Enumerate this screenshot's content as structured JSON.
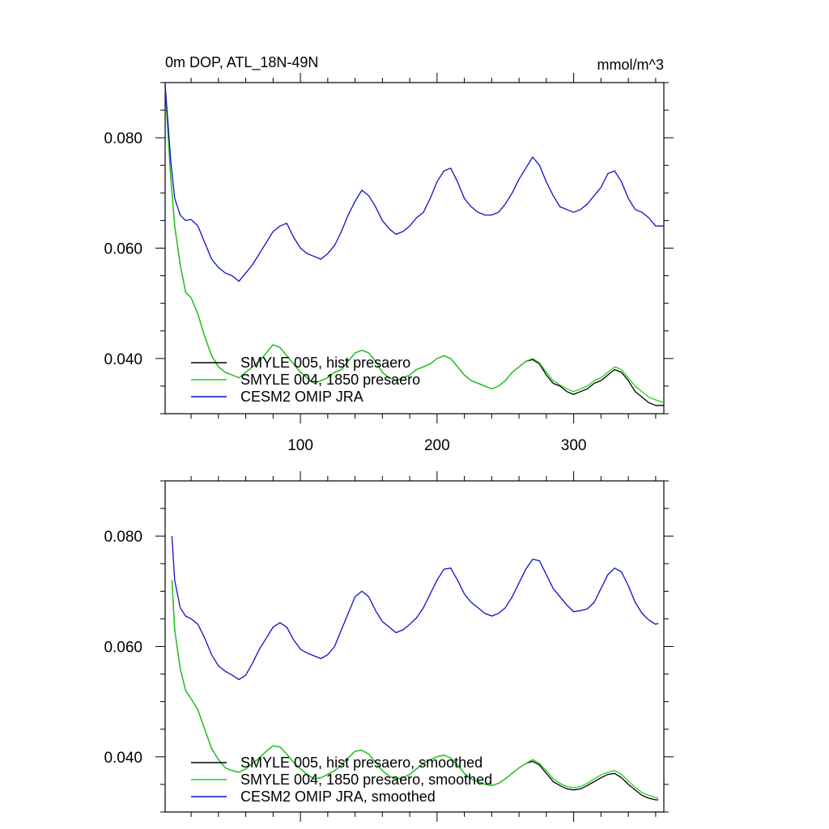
{
  "chart_data": [
    {
      "type": "line",
      "title": "0m DOP, ATL_18N-49N",
      "units": "mmol/m^3",
      "xlabel": "",
      "ylabel": "",
      "xlim": [
        1,
        366
      ],
      "ylim": [
        0.03,
        0.09
      ],
      "x_tick_labels": [
        "100",
        "200",
        "300"
      ],
      "y_tick_labels": [
        "0.040",
        "0.060",
        "0.080"
      ],
      "legend_position": "bottom-left",
      "series": [
        {
          "name": "SMYLE 005, hist presaero",
          "color": "#000000",
          "x": [
            1,
            3,
            5,
            8,
            12,
            16,
            20,
            25,
            30,
            35,
            40,
            45,
            50,
            55,
            60,
            65,
            70,
            75,
            80,
            85,
            90,
            95,
            100,
            105,
            110,
            115,
            120,
            125,
            130,
            135,
            140,
            145,
            150,
            155,
            160,
            165,
            170,
            175,
            180,
            185,
            190,
            195,
            200,
            205,
            210,
            215,
            220,
            225,
            230,
            235,
            240,
            245,
            250,
            255,
            260,
            265,
            270,
            275,
            280,
            285,
            290,
            295,
            300,
            305,
            310,
            315,
            320,
            325,
            330,
            335,
            340,
            345,
            350,
            355,
            360,
            366
          ],
          "y": [
            0.0895,
            0.081,
            0.073,
            0.064,
            0.057,
            0.052,
            0.051,
            0.048,
            0.044,
            0.0405,
            0.0385,
            0.0375,
            0.037,
            0.0365,
            0.0375,
            0.0385,
            0.0395,
            0.041,
            0.0425,
            0.042,
            0.0405,
            0.039,
            0.0375,
            0.0365,
            0.0355,
            0.036,
            0.0365,
            0.0375,
            0.038,
            0.0395,
            0.041,
            0.0415,
            0.041,
            0.0395,
            0.0375,
            0.0365,
            0.036,
            0.0365,
            0.037,
            0.038,
            0.0385,
            0.039,
            0.04,
            0.0405,
            0.04,
            0.0385,
            0.037,
            0.036,
            0.0355,
            0.035,
            0.0345,
            0.035,
            0.036,
            0.0375,
            0.0385,
            0.0395,
            0.0398,
            0.039,
            0.037,
            0.0355,
            0.035,
            0.034,
            0.0335,
            0.034,
            0.0345,
            0.0355,
            0.036,
            0.037,
            0.038,
            0.0375,
            0.036,
            0.034,
            0.033,
            0.032,
            0.0315,
            0.0315
          ]
        },
        {
          "name": "SMYLE 004, 1850 presaero",
          "color": "#1ed01e",
          "x": [
            1,
            3,
            5,
            8,
            12,
            16,
            20,
            25,
            30,
            35,
            40,
            45,
            50,
            55,
            60,
            65,
            70,
            75,
            80,
            85,
            90,
            95,
            100,
            105,
            110,
            115,
            120,
            125,
            130,
            135,
            140,
            145,
            150,
            155,
            160,
            165,
            170,
            175,
            180,
            185,
            190,
            195,
            200,
            205,
            210,
            215,
            220,
            225,
            230,
            235,
            240,
            245,
            250,
            255,
            260,
            265,
            270,
            275,
            280,
            285,
            290,
            295,
            300,
            305,
            310,
            315,
            320,
            325,
            330,
            335,
            340,
            345,
            350,
            355,
            360,
            366
          ],
          "y": [
            0.0895,
            0.081,
            0.073,
            0.064,
            0.057,
            0.052,
            0.051,
            0.048,
            0.044,
            0.0405,
            0.0385,
            0.0375,
            0.037,
            0.0365,
            0.0375,
            0.0385,
            0.0395,
            0.041,
            0.0425,
            0.042,
            0.0405,
            0.039,
            0.0375,
            0.0365,
            0.0355,
            0.036,
            0.0365,
            0.0375,
            0.038,
            0.0395,
            0.041,
            0.0415,
            0.041,
            0.0395,
            0.0375,
            0.0365,
            0.036,
            0.0365,
            0.037,
            0.038,
            0.0385,
            0.039,
            0.04,
            0.0405,
            0.04,
            0.0385,
            0.037,
            0.036,
            0.0355,
            0.035,
            0.0345,
            0.035,
            0.036,
            0.0375,
            0.0385,
            0.0395,
            0.04,
            0.0392,
            0.0375,
            0.036,
            0.0352,
            0.0345,
            0.034,
            0.0345,
            0.035,
            0.036,
            0.0365,
            0.0375,
            0.0385,
            0.038,
            0.0365,
            0.035,
            0.034,
            0.033,
            0.0325,
            0.032
          ]
        },
        {
          "name": "CESM2 OMIP JRA",
          "color": "#1010c8",
          "x": [
            1,
            3,
            5,
            8,
            12,
            16,
            20,
            25,
            30,
            35,
            40,
            45,
            50,
            55,
            60,
            65,
            70,
            75,
            80,
            85,
            90,
            95,
            100,
            105,
            110,
            115,
            120,
            125,
            130,
            135,
            140,
            145,
            150,
            155,
            160,
            165,
            170,
            175,
            180,
            185,
            190,
            195,
            200,
            205,
            210,
            215,
            220,
            225,
            230,
            235,
            240,
            245,
            250,
            255,
            260,
            265,
            270,
            275,
            280,
            285,
            290,
            295,
            300,
            305,
            310,
            315,
            320,
            325,
            330,
            335,
            340,
            345,
            350,
            355,
            360,
            366
          ],
          "y": [
            0.0895,
            0.083,
            0.076,
            0.069,
            0.066,
            0.065,
            0.0652,
            0.064,
            0.061,
            0.058,
            0.0565,
            0.0555,
            0.055,
            0.054,
            0.0555,
            0.057,
            0.059,
            0.061,
            0.063,
            0.064,
            0.0645,
            0.062,
            0.06,
            0.059,
            0.0585,
            0.058,
            0.059,
            0.0605,
            0.063,
            0.066,
            0.0685,
            0.0705,
            0.0695,
            0.0675,
            0.065,
            0.0635,
            0.0625,
            0.063,
            0.064,
            0.0655,
            0.0665,
            0.069,
            0.072,
            0.074,
            0.0745,
            0.072,
            0.069,
            0.0675,
            0.0665,
            0.066,
            0.066,
            0.0665,
            0.068,
            0.07,
            0.0725,
            0.0745,
            0.0765,
            0.075,
            0.072,
            0.0695,
            0.0675,
            0.067,
            0.0665,
            0.067,
            0.068,
            0.0695,
            0.071,
            0.0735,
            0.074,
            0.072,
            0.069,
            0.067,
            0.0665,
            0.0655,
            0.064,
            0.064
          ]
        }
      ]
    },
    {
      "type": "line",
      "title": "",
      "xlabel": "",
      "ylabel": "",
      "xlim": [
        1,
        366
      ],
      "ylim": [
        0.03,
        0.09
      ],
      "y_tick_labels": [
        "0.040",
        "0.060",
        "0.080"
      ],
      "legend_position": "bottom-left",
      "series": [
        {
          "name": "SMYLE 005, hist presaero, smoothed",
          "color": "#000000",
          "x": [
            6,
            8,
            12,
            16,
            20,
            25,
            30,
            35,
            40,
            45,
            50,
            55,
            60,
            65,
            70,
            75,
            80,
            85,
            90,
            95,
            100,
            105,
            110,
            115,
            120,
            125,
            130,
            135,
            140,
            145,
            150,
            155,
            160,
            165,
            170,
            175,
            180,
            185,
            190,
            195,
            200,
            205,
            210,
            215,
            220,
            225,
            230,
            235,
            240,
            245,
            250,
            255,
            260,
            265,
            270,
            275,
            280,
            285,
            290,
            295,
            300,
            305,
            310,
            315,
            320,
            325,
            330,
            335,
            340,
            345,
            350,
            355,
            360,
            362
          ],
          "y": [
            0.072,
            0.063,
            0.056,
            0.052,
            0.0505,
            0.0485,
            0.045,
            0.0415,
            0.0395,
            0.038,
            0.0375,
            0.0372,
            0.0378,
            0.0388,
            0.0398,
            0.041,
            0.042,
            0.0418,
            0.0405,
            0.039,
            0.0378,
            0.0368,
            0.036,
            0.0362,
            0.0368,
            0.0375,
            0.0385,
            0.0398,
            0.041,
            0.0412,
            0.0405,
            0.039,
            0.0375,
            0.0365,
            0.036,
            0.0362,
            0.0368,
            0.0378,
            0.0388,
            0.0395,
            0.04,
            0.0403,
            0.0398,
            0.0385,
            0.037,
            0.036,
            0.0355,
            0.035,
            0.0348,
            0.0352,
            0.036,
            0.037,
            0.038,
            0.0388,
            0.0392,
            0.0385,
            0.037,
            0.0355,
            0.0348,
            0.0342,
            0.034,
            0.0342,
            0.0348,
            0.0355,
            0.0362,
            0.0368,
            0.037,
            0.0362,
            0.035,
            0.034,
            0.033,
            0.0325,
            0.0322,
            0.0322
          ]
        },
        {
          "name": "SMYLE 004, 1850 presaero, smoothed",
          "color": "#1ed01e",
          "x": [
            6,
            8,
            12,
            16,
            20,
            25,
            30,
            35,
            40,
            45,
            50,
            55,
            60,
            65,
            70,
            75,
            80,
            85,
            90,
            95,
            100,
            105,
            110,
            115,
            120,
            125,
            130,
            135,
            140,
            145,
            150,
            155,
            160,
            165,
            170,
            175,
            180,
            185,
            190,
            195,
            200,
            205,
            210,
            215,
            220,
            225,
            230,
            235,
            240,
            245,
            250,
            255,
            260,
            265,
            270,
            275,
            280,
            285,
            290,
            295,
            300,
            305,
            310,
            315,
            320,
            325,
            330,
            335,
            340,
            345,
            350,
            355,
            360,
            362
          ],
          "y": [
            0.072,
            0.063,
            0.056,
            0.052,
            0.0505,
            0.0485,
            0.045,
            0.0415,
            0.0395,
            0.038,
            0.0375,
            0.0372,
            0.0378,
            0.0388,
            0.0398,
            0.041,
            0.042,
            0.0418,
            0.0405,
            0.039,
            0.0378,
            0.0368,
            0.036,
            0.0362,
            0.0368,
            0.0375,
            0.0385,
            0.0398,
            0.041,
            0.0412,
            0.0405,
            0.039,
            0.0375,
            0.0365,
            0.036,
            0.0362,
            0.0368,
            0.0378,
            0.0388,
            0.0395,
            0.04,
            0.0403,
            0.0398,
            0.0385,
            0.037,
            0.036,
            0.0355,
            0.035,
            0.0348,
            0.0352,
            0.036,
            0.037,
            0.038,
            0.0388,
            0.0395,
            0.0388,
            0.0375,
            0.036,
            0.0352,
            0.0346,
            0.0344,
            0.0346,
            0.0352,
            0.036,
            0.0367,
            0.0372,
            0.0375,
            0.0368,
            0.0356,
            0.0345,
            0.0335,
            0.033,
            0.0326,
            0.0325
          ]
        },
        {
          "name": "CESM2 OMIP JRA, smoothed",
          "color": "#1010c8",
          "x": [
            6,
            8,
            12,
            16,
            20,
            25,
            30,
            35,
            40,
            45,
            50,
            55,
            60,
            65,
            70,
            75,
            80,
            85,
            90,
            95,
            100,
            105,
            110,
            115,
            120,
            125,
            130,
            135,
            140,
            145,
            150,
            155,
            160,
            165,
            170,
            175,
            180,
            185,
            190,
            195,
            200,
            205,
            210,
            215,
            220,
            225,
            230,
            235,
            240,
            245,
            250,
            255,
            260,
            265,
            270,
            275,
            280,
            285,
            290,
            295,
            300,
            305,
            310,
            315,
            320,
            325,
            330,
            335,
            340,
            345,
            350,
            355,
            360,
            362
          ],
          "y": [
            0.08,
            0.072,
            0.067,
            0.0655,
            0.065,
            0.064,
            0.0615,
            0.0585,
            0.0565,
            0.0555,
            0.0548,
            0.054,
            0.0548,
            0.057,
            0.0595,
            0.0615,
            0.0635,
            0.0643,
            0.0635,
            0.0612,
            0.0595,
            0.0588,
            0.0583,
            0.0578,
            0.0585,
            0.06,
            0.063,
            0.066,
            0.069,
            0.07,
            0.069,
            0.0665,
            0.0645,
            0.0635,
            0.0625,
            0.063,
            0.064,
            0.0652,
            0.067,
            0.0695,
            0.072,
            0.074,
            0.0742,
            0.072,
            0.0695,
            0.068,
            0.067,
            0.066,
            0.0655,
            0.066,
            0.067,
            0.069,
            0.0715,
            0.074,
            0.0758,
            0.0755,
            0.073,
            0.0705,
            0.069,
            0.0675,
            0.0663,
            0.0665,
            0.0668,
            0.068,
            0.0705,
            0.073,
            0.0742,
            0.0735,
            0.071,
            0.068,
            0.066,
            0.0648,
            0.064,
            0.0642
          ]
        }
      ]
    }
  ]
}
